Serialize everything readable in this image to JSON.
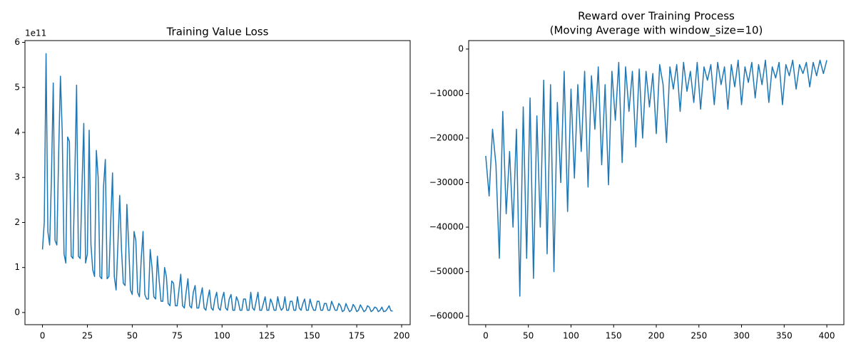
{
  "chart_data": [
    {
      "type": "line",
      "title": "Training Value Loss",
      "y_offset_label": "1e11",
      "color": "#1f77b4",
      "xlim": [
        -9.75,
        204.75
      ],
      "ylim": [
        -0.27,
        6.04
      ],
      "xticks": [
        0,
        25,
        50,
        75,
        100,
        125,
        150,
        175,
        200
      ],
      "yticks": [
        0,
        1,
        2,
        3,
        4,
        5,
        6
      ],
      "x": [
        0,
        1,
        2,
        3,
        4,
        5,
        6,
        7,
        8,
        9,
        10,
        11,
        12,
        13,
        14,
        15,
        16,
        17,
        18,
        19,
        20,
        21,
        22,
        23,
        24,
        25,
        26,
        27,
        28,
        29,
        30,
        31,
        32,
        33,
        34,
        35,
        36,
        37,
        38,
        39,
        40,
        41,
        42,
        43,
        44,
        45,
        46,
        47,
        48,
        49,
        50,
        51,
        52,
        53,
        54,
        55,
        56,
        57,
        58,
        59,
        60,
        61,
        62,
        63,
        64,
        65,
        66,
        67,
        68,
        69,
        70,
        71,
        72,
        73,
        74,
        75,
        76,
        77,
        78,
        79,
        80,
        81,
        82,
        83,
        84,
        85,
        86,
        87,
        88,
        89,
        90,
        91,
        92,
        93,
        94,
        95,
        96,
        97,
        98,
        99,
        100,
        101,
        102,
        103,
        104,
        105,
        106,
        107,
        108,
        109,
        110,
        111,
        112,
        113,
        114,
        115,
        116,
        117,
        118,
        119,
        120,
        121,
        122,
        123,
        124,
        125,
        126,
        127,
        128,
        129,
        130,
        131,
        132,
        133,
        134,
        135,
        136,
        137,
        138,
        139,
        140,
        141,
        142,
        143,
        144,
        145,
        146,
        147,
        148,
        149,
        150,
        151,
        152,
        153,
        154,
        155,
        156,
        157,
        158,
        159,
        160,
        161,
        162,
        163,
        164,
        165,
        166,
        167,
        168,
        169,
        170,
        171,
        172,
        173,
        174,
        175,
        176,
        177,
        178,
        179,
        180,
        181,
        182,
        183,
        184,
        185,
        186,
        187,
        188,
        189,
        190,
        191,
        192,
        193,
        194,
        195
      ],
      "values": [
        1.4,
        2.0,
        5.75,
        1.8,
        1.5,
        3.0,
        5.1,
        1.6,
        1.5,
        3.5,
        5.25,
        4.0,
        1.3,
        1.1,
        3.9,
        3.8,
        1.25,
        1.2,
        3.0,
        5.05,
        1.25,
        1.2,
        2.8,
        4.2,
        1.1,
        1.3,
        4.05,
        1.5,
        0.95,
        0.8,
        3.6,
        3.0,
        0.8,
        0.75,
        2.8,
        3.4,
        0.75,
        0.8,
        2.0,
        3.1,
        0.8,
        0.5,
        1.5,
        2.6,
        1.4,
        0.65,
        0.6,
        2.4,
        1.5,
        0.5,
        0.4,
        1.8,
        1.6,
        0.45,
        0.35,
        1.2,
        1.8,
        0.4,
        0.3,
        0.3,
        1.4,
        1.0,
        0.35,
        0.3,
        1.25,
        0.7,
        0.25,
        0.25,
        1.0,
        0.8,
        0.2,
        0.15,
        0.7,
        0.65,
        0.15,
        0.15,
        0.5,
        0.85,
        0.15,
        0.1,
        0.45,
        0.75,
        0.15,
        0.1,
        0.45,
        0.6,
        0.1,
        0.1,
        0.35,
        0.55,
        0.1,
        0.05,
        0.3,
        0.5,
        0.1,
        0.05,
        0.3,
        0.45,
        0.1,
        0.05,
        0.3,
        0.45,
        0.1,
        0.05,
        0.3,
        0.4,
        0.05,
        0.05,
        0.35,
        0.25,
        0.05,
        0.05,
        0.3,
        0.3,
        0.05,
        0.05,
        0.45,
        0.1,
        0.05,
        0.25,
        0.45,
        0.05,
        0.05,
        0.2,
        0.35,
        0.05,
        0.05,
        0.3,
        0.2,
        0.05,
        0.05,
        0.35,
        0.15,
        0.05,
        0.1,
        0.35,
        0.05,
        0.05,
        0.25,
        0.25,
        0.05,
        0.05,
        0.35,
        0.1,
        0.05,
        0.2,
        0.3,
        0.05,
        0.05,
        0.3,
        0.15,
        0.05,
        0.05,
        0.25,
        0.25,
        0.05,
        0.05,
        0.2,
        0.2,
        0.05,
        0.05,
        0.25,
        0.15,
        0.05,
        0.05,
        0.2,
        0.15,
        0.02,
        0.05,
        0.2,
        0.1,
        0.02,
        0.05,
        0.18,
        0.12,
        0.02,
        0.05,
        0.17,
        0.1,
        0.02,
        0.05,
        0.15,
        0.12,
        0.02,
        0.05,
        0.12,
        0.1,
        0.02,
        0.05,
        0.12,
        0.02,
        0.03,
        0.08,
        0.15,
        0.04,
        0.03
      ]
    },
    {
      "type": "line",
      "title": [
        "Reward over Training Process",
        "(Moving Average with window_size=10)"
      ],
      "color": "#1f77b4",
      "xlim": [
        -20,
        420
      ],
      "ylim": [
        -61900,
        1900
      ],
      "xticks": [
        0,
        50,
        100,
        150,
        200,
        250,
        300,
        350,
        400
      ],
      "yticks": [
        0,
        {
          "value": -10000,
          "label": "−10000"
        },
        {
          "value": -20000,
          "label": "−20000"
        },
        {
          "value": -30000,
          "label": "−30000"
        },
        {
          "value": -40000,
          "label": "−40000"
        },
        {
          "value": -50000,
          "label": "−50000"
        },
        {
          "value": -60000,
          "label": "−60000"
        }
      ],
      "x": [
        0,
        4,
        8,
        12,
        16,
        20,
        24,
        28,
        32,
        36,
        40,
        44,
        48,
        52,
        56,
        60,
        64,
        68,
        72,
        76,
        80,
        84,
        88,
        92,
        96,
        100,
        104,
        108,
        112,
        116,
        120,
        124,
        128,
        132,
        136,
        140,
        144,
        148,
        152,
        156,
        160,
        164,
        168,
        172,
        176,
        180,
        184,
        188,
        192,
        196,
        200,
        204,
        208,
        212,
        216,
        220,
        224,
        228,
        232,
        236,
        240,
        244,
        248,
        252,
        256,
        260,
        264,
        268,
        272,
        276,
        280,
        284,
        288,
        292,
        296,
        300,
        304,
        308,
        312,
        316,
        320,
        324,
        328,
        332,
        336,
        340,
        344,
        348,
        352,
        356,
        360,
        364,
        368,
        372,
        376,
        380,
        384,
        388,
        392,
        396,
        400
      ],
      "values": [
        -24000,
        -33000,
        -18000,
        -26000,
        -47000,
        -14000,
        -37000,
        -23000,
        -40000,
        -18000,
        -55500,
        -13000,
        -47000,
        -11000,
        -51500,
        -15000,
        -40000,
        -7000,
        -46000,
        -8000,
        -50000,
        -12000,
        -30000,
        -5000,
        -36500,
        -9000,
        -29000,
        -8000,
        -23000,
        -5000,
        -31000,
        -6000,
        -18000,
        -4000,
        -26000,
        -8000,
        -30500,
        -5000,
        -16000,
        -3000,
        -25500,
        -4000,
        -14000,
        -5000,
        -22000,
        -4500,
        -20000,
        -5000,
        -13000,
        -5500,
        -19000,
        -3500,
        -8000,
        -21000,
        -4000,
        -9000,
        -3500,
        -14000,
        -3000,
        -9500,
        -5000,
        -12000,
        -3000,
        -13500,
        -4000,
        -7000,
        -3500,
        -12500,
        -3000,
        -8000,
        -4000,
        -13500,
        -3500,
        -8500,
        -2500,
        -12500,
        -4000,
        -7500,
        -3000,
        -11000,
        -3500,
        -8000,
        -2500,
        -12000,
        -4000,
        -6500,
        -3000,
        -12500,
        -3500,
        -6000,
        -2500,
        -9000,
        -3500,
        -5500,
        -3000,
        -8500,
        -3000,
        -6000,
        -2500,
        -5500,
        -2500
      ]
    }
  ]
}
